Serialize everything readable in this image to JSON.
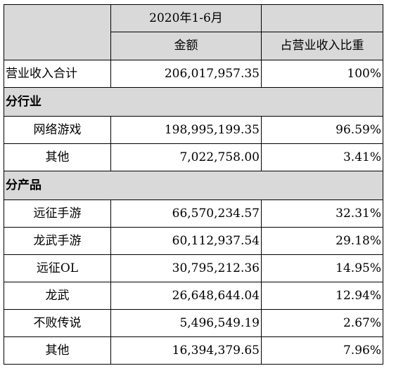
{
  "header": {
    "period": "2020年1-6月",
    "col_amount": "金额",
    "col_share": "占营业收入比重"
  },
  "total": {
    "label": "营业收入合计",
    "amount": "206,017,957.35",
    "share": "100%"
  },
  "by_industry": {
    "title": "分行业",
    "rows": [
      {
        "label": "网络游戏",
        "amount": "198,995,199.35",
        "share": "96.59%"
      },
      {
        "label": "其他",
        "amount": "7,022,758.00",
        "share": "3.41%"
      }
    ]
  },
  "by_product": {
    "title": "分产品",
    "rows": [
      {
        "label": "远征手游",
        "amount": "66,570,234.57",
        "share": "32.31%"
      },
      {
        "label": "龙武手游",
        "amount": "60,112,937.54",
        "share": "29.18%"
      },
      {
        "label": "远征OL",
        "amount": "30,795,212.36",
        "share": "14.95%"
      },
      {
        "label": "龙武",
        "amount": "26,648,644.04",
        "share": "12.94%"
      },
      {
        "label": "不败传说",
        "amount": "5,496,549.19",
        "share": "2.67%"
      },
      {
        "label": "其他",
        "amount": "16,394,379.65",
        "share": "7.96%"
      }
    ]
  },
  "colors": {
    "header_bg": "#d9d9d9",
    "border": "#000000"
  }
}
